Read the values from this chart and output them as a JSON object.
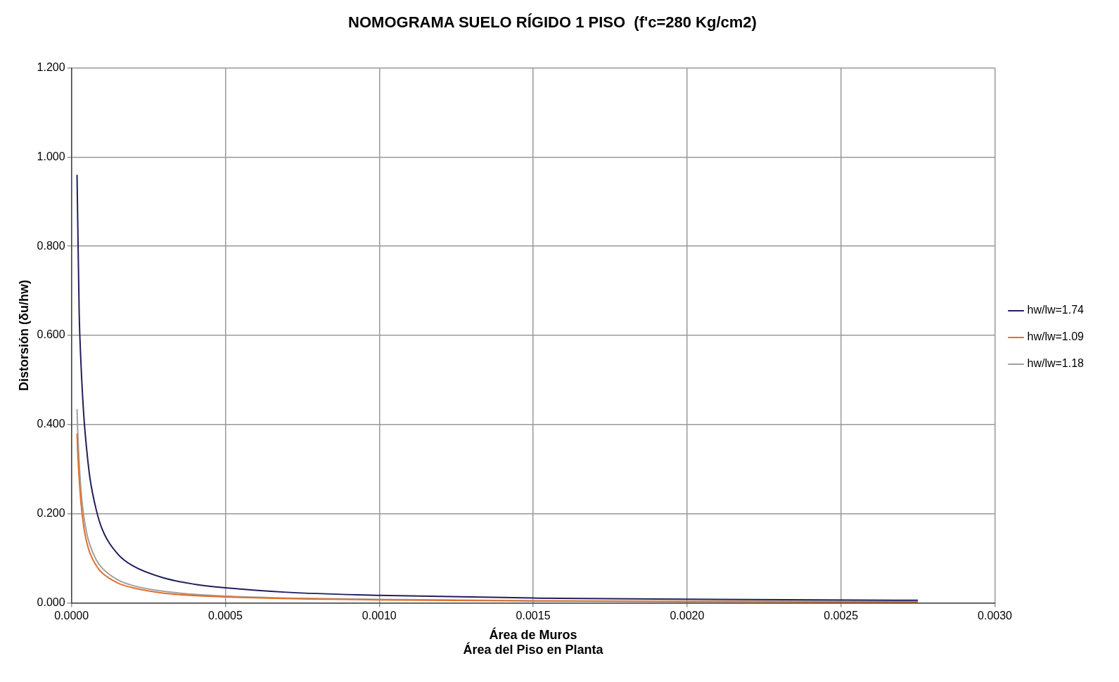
{
  "chart_data": {
    "type": "line",
    "title": "NOMOGRAMA SUELO RÍGIDO 1 PISO  (f'c=280 Kg/cm2)",
    "xlabel": "Área de Muros\nÁrea del Piso en Planta",
    "ylabel": "Distorsión (δu/hw)",
    "xlim": [
      0,
      0.003
    ],
    "xticks": [
      {
        "value": 0,
        "label": "0.0000"
      },
      {
        "value": 0.0005,
        "label": "0.0005"
      },
      {
        "value": 0.001,
        "label": "0.0010"
      },
      {
        "value": 0.0015,
        "label": "0.0015"
      },
      {
        "value": 0.002,
        "label": "0.0020"
      },
      {
        "value": 0.0025,
        "label": "0.0025"
      },
      {
        "value": 0.003,
        "label": "0.0030"
      }
    ],
    "ylim": [
      0,
      1.2
    ],
    "yticks": [
      {
        "value": 0,
        "label": "0.000"
      },
      {
        "value": 0.2,
        "label": "0.200"
      },
      {
        "value": 0.4,
        "label": "0.400"
      },
      {
        "value": 0.6,
        "label": "0.600"
      },
      {
        "value": 0.8,
        "label": "0.800"
      },
      {
        "value": 1,
        "label": "1.000"
      },
      {
        "value": 1.2,
        "label": "1.200"
      }
    ],
    "grid": true,
    "legend": "right",
    "marker": "none",
    "line_style": "solid",
    "series": [
      {
        "name": "hw/lw=1.74",
        "color": "#1f1f5c",
        "x": [
          1.8e-05,
          2e-05,
          2.5e-05,
          3e-05,
          4e-05,
          5e-05,
          6e-05,
          8e-05,
          0.0001,
          0.00015,
          0.0002,
          0.0003,
          0.0004,
          0.0005,
          0.0007,
          0.001,
          0.0015,
          0.002,
          0.00275
        ],
        "values": [
          0.96,
          0.87,
          0.65,
          0.55,
          0.42,
          0.34,
          0.28,
          0.21,
          0.165,
          0.11,
          0.083,
          0.056,
          0.042,
          0.034,
          0.024,
          0.017,
          0.011,
          0.0085,
          0.006
        ]
      },
      {
        "name": "hw/lw=1.09",
        "color": "#e0702a",
        "x": [
          1.8e-05,
          2e-05,
          3e-05,
          4e-05,
          5e-05,
          6e-05,
          8e-05,
          0.0001,
          0.00015,
          0.0002,
          0.0003,
          0.0005,
          0.001,
          0.0015,
          0.002,
          0.00275
        ],
        "values": [
          0.38,
          0.34,
          0.23,
          0.17,
          0.135,
          0.112,
          0.084,
          0.067,
          0.045,
          0.034,
          0.022,
          0.0135,
          0.007,
          0.0045,
          0.0034,
          0.0025
        ]
      },
      {
        "name": "hw/lw=1.18",
        "color": "#a0a0a0",
        "x": [
          1.8e-05,
          2e-05,
          3e-05,
          4e-05,
          5e-05,
          6e-05,
          8e-05,
          0.0001,
          0.00015,
          0.0002,
          0.0003,
          0.0005,
          0.001,
          0.0015,
          0.002,
          0.00275
        ],
        "values": [
          0.435,
          0.39,
          0.26,
          0.195,
          0.155,
          0.13,
          0.097,
          0.078,
          0.052,
          0.039,
          0.026,
          0.0155,
          0.008,
          0.005,
          0.0039,
          0.0028
        ]
      }
    ]
  }
}
